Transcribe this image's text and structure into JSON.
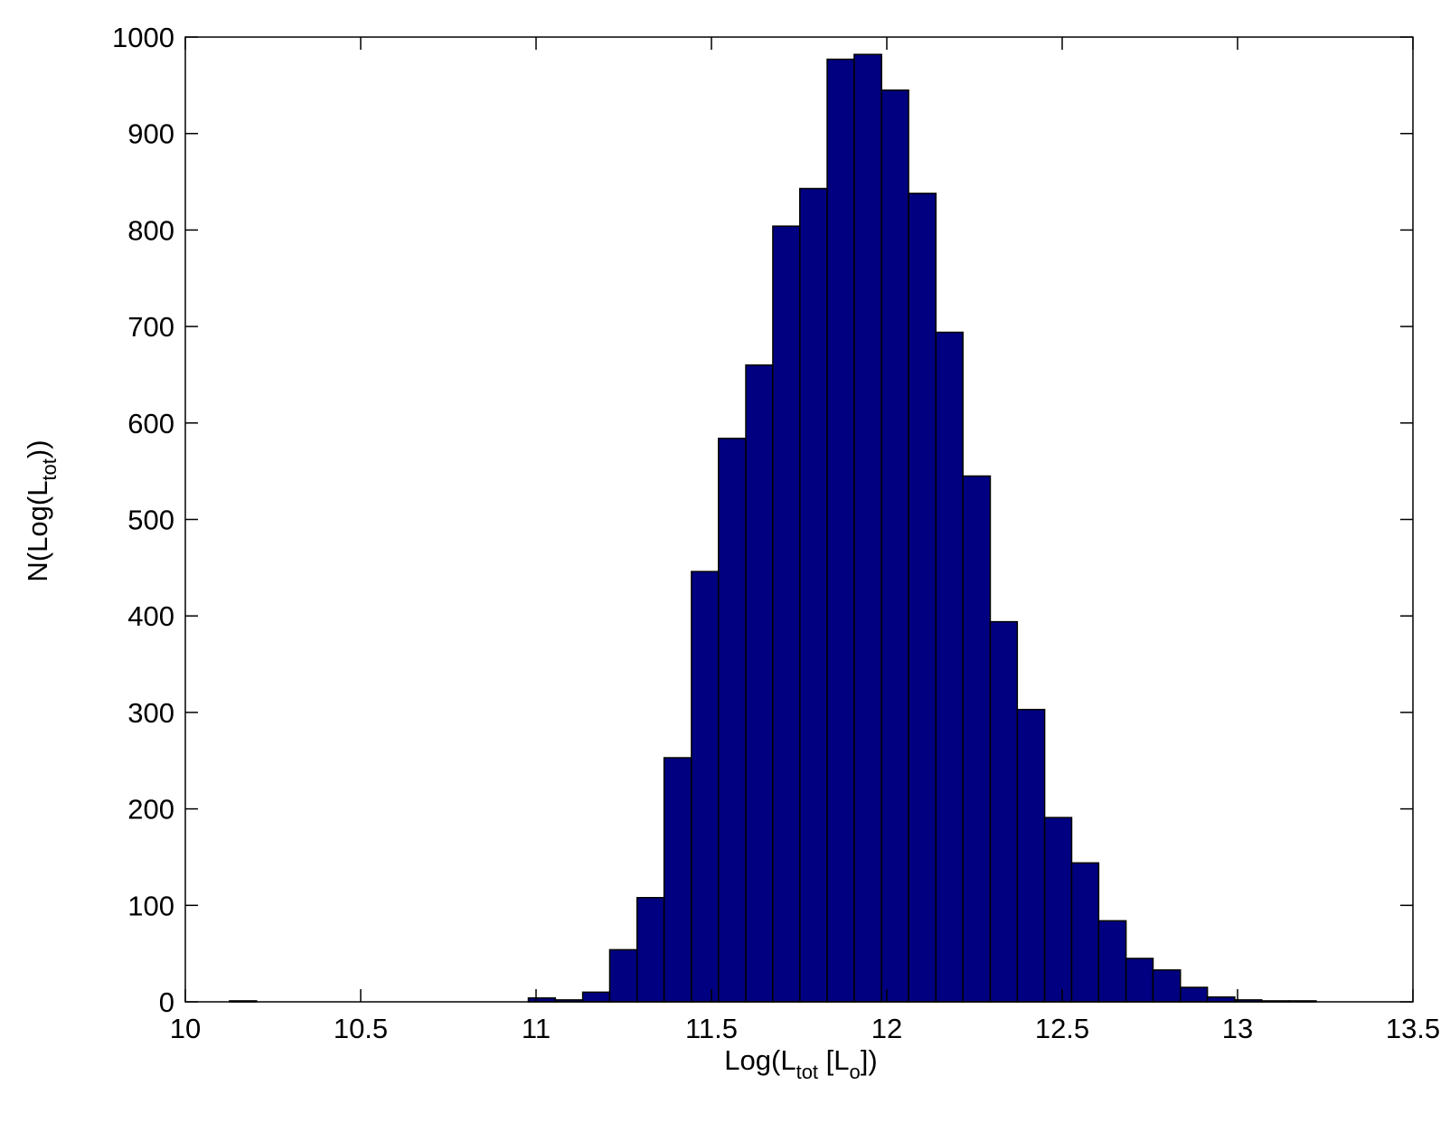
{
  "chart_data": {
    "type": "histogram",
    "xlabel": [
      "Log(L",
      "tot",
      " [L",
      "o",
      "])"
    ],
    "ylabel": [
      "N(Log(L",
      "tot",
      "))"
    ],
    "bins": [
      10.126,
      10.203,
      10.281,
      10.358,
      10.436,
      10.513,
      10.591,
      10.668,
      10.746,
      10.823,
      10.901,
      10.978,
      11.055,
      11.133,
      11.21,
      11.288,
      11.365,
      11.443,
      11.52,
      11.598,
      11.675,
      11.752,
      11.83,
      11.907,
      11.985,
      12.062,
      12.14,
      12.217,
      12.295,
      12.372,
      12.45,
      12.527,
      12.604,
      12.682,
      12.759,
      12.837,
      12.914,
      12.992,
      13.069,
      13.147,
      13.224
    ],
    "values": [
      1,
      0,
      0,
      0,
      0,
      0,
      0,
      0,
      0,
      0,
      0,
      4,
      2,
      10,
      54,
      108,
      253,
      446,
      584,
      660,
      804,
      843,
      977,
      982,
      945,
      838,
      694,
      545,
      394,
      303,
      191,
      144,
      84,
      45,
      33,
      15,
      5,
      2,
      1,
      1
    ],
    "color": "#000080",
    "xlim": [
      10,
      13.5
    ],
    "xticks": [
      10,
      10.5,
      11,
      11.5,
      12,
      12.5,
      13,
      13.5
    ],
    "ylim": [
      0,
      1000
    ],
    "yticks": [
      0,
      100,
      200,
      300,
      400,
      500,
      600,
      700,
      800,
      900,
      1000
    ]
  }
}
